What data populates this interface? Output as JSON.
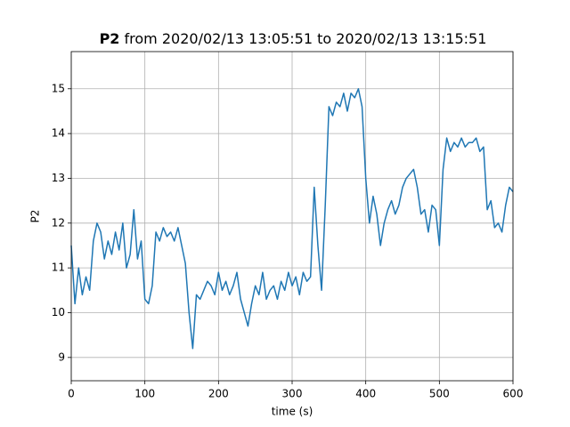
{
  "chart_data": {
    "type": "line",
    "title": {
      "name": "P2",
      "text": "from 2020/02/13 13:05:51 to 2020/02/13 13:15:51"
    },
    "xlabel": "time (s)",
    "ylabel": "P2",
    "x": [
      0,
      5,
      10,
      15,
      20,
      25,
      30,
      35,
      40,
      45,
      50,
      55,
      60,
      65,
      70,
      75,
      80,
      85,
      90,
      95,
      100,
      105,
      110,
      115,
      120,
      125,
      130,
      135,
      140,
      145,
      150,
      155,
      160,
      165,
      170,
      175,
      180,
      185,
      190,
      195,
      200,
      205,
      210,
      215,
      220,
      225,
      230,
      235,
      240,
      245,
      250,
      255,
      260,
      265,
      270,
      275,
      280,
      285,
      290,
      295,
      300,
      305,
      310,
      315,
      320,
      325,
      330,
      335,
      340,
      345,
      350,
      355,
      360,
      365,
      370,
      375,
      380,
      385,
      390,
      395,
      400,
      405,
      410,
      415,
      420,
      425,
      430,
      435,
      440,
      445,
      450,
      455,
      460,
      465,
      470,
      475,
      480,
      485,
      490,
      495,
      500,
      505,
      510,
      515,
      520,
      525,
      530,
      535,
      540,
      545,
      550,
      555,
      560,
      565,
      570,
      575,
      580,
      585,
      590,
      595,
      600
    ],
    "series": [
      {
        "name": "P2",
        "color": "#1f77b4",
        "values": [
          11.5,
          10.2,
          11.0,
          10.4,
          10.8,
          10.5,
          11.6,
          12.0,
          11.8,
          11.2,
          11.6,
          11.3,
          11.8,
          11.4,
          12.0,
          11.0,
          11.3,
          12.3,
          11.2,
          11.6,
          10.3,
          10.2,
          10.6,
          11.8,
          11.6,
          11.9,
          11.7,
          11.8,
          11.6,
          11.9,
          11.5,
          11.1,
          10.0,
          9.2,
          10.4,
          10.3,
          10.5,
          10.7,
          10.6,
          10.4,
          10.9,
          10.5,
          10.7,
          10.4,
          10.6,
          10.9,
          10.3,
          10.0,
          9.7,
          10.2,
          10.6,
          10.4,
          10.9,
          10.3,
          10.5,
          10.6,
          10.3,
          10.7,
          10.5,
          10.9,
          10.6,
          10.8,
          10.4,
          10.9,
          10.7,
          10.8,
          12.8,
          11.5,
          10.5,
          12.4,
          14.6,
          14.4,
          14.7,
          14.6,
          14.9,
          14.5,
          14.9,
          14.8,
          15.0,
          14.6,
          13.0,
          12.0,
          12.6,
          12.2,
          11.5,
          12.0,
          12.3,
          12.5,
          12.2,
          12.4,
          12.8,
          13.0,
          13.1,
          13.2,
          12.8,
          12.2,
          12.3,
          11.8,
          12.4,
          12.3,
          11.5,
          13.2,
          13.9,
          13.6,
          13.8,
          13.7,
          13.9,
          13.7,
          13.8,
          13.8,
          13.9,
          13.6,
          13.7,
          12.3,
          12.5,
          11.9,
          12.0,
          11.8,
          12.4,
          12.8,
          12.7
        ]
      }
    ],
    "xlim": [
      0,
      600
    ],
    "xticks": [
      0,
      100,
      200,
      300,
      400,
      500,
      600
    ],
    "ylim": [
      8.48,
      15.83
    ],
    "yticks": [
      9,
      10,
      11,
      12,
      13,
      14,
      15
    ],
    "grid": true
  }
}
